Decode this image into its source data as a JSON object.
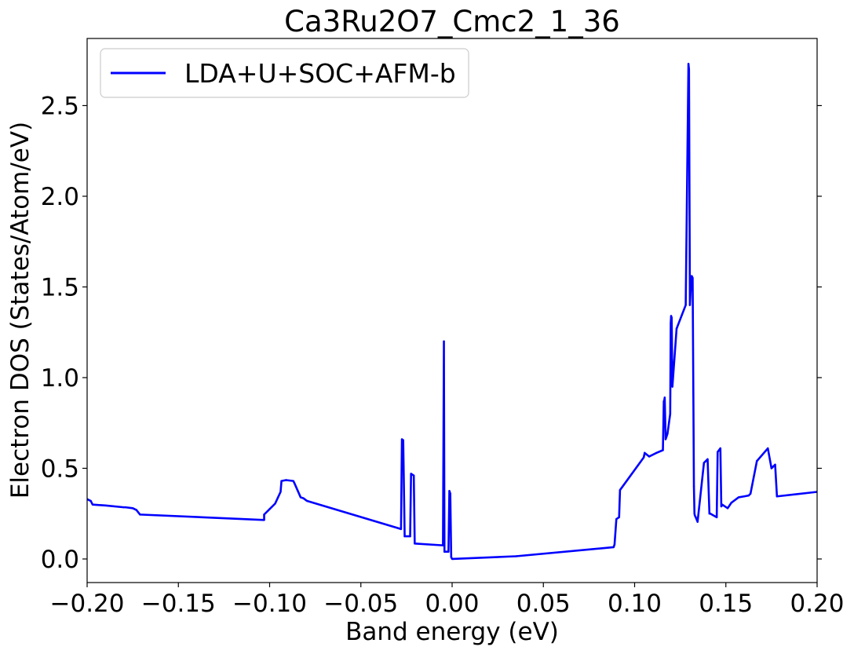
{
  "chart_data": {
    "type": "line",
    "title": "Ca3Ru2O7_Cmc2_1_36",
    "xlabel": "Band energy (eV)",
    "ylabel": "Electron DOS (States/Atom/eV)",
    "xlim": [
      -0.2,
      0.2
    ],
    "ylim": [
      -0.13,
      2.87
    ],
    "x_ticks": [
      -0.2,
      -0.15,
      -0.1,
      -0.05,
      0.0,
      0.05,
      0.1,
      0.15,
      0.2
    ],
    "x_tick_labels": [
      "−0.20",
      "−0.15",
      "−0.10",
      "−0.05",
      "0.00",
      "0.05",
      "0.10",
      "0.15",
      "0.20"
    ],
    "y_ticks": [
      0.0,
      0.5,
      1.0,
      1.5,
      2.0,
      2.5
    ],
    "y_tick_labels": [
      "0.0",
      "0.5",
      "1.0",
      "1.5",
      "2.0",
      "2.5"
    ],
    "grid": false,
    "legend_position": "upper-left",
    "series": [
      {
        "name": "LDA+U+SOC+AFM-b",
        "color": "#0000ff",
        "x": [
          -0.2,
          -0.198,
          -0.197,
          -0.19,
          -0.18,
          -0.179,
          -0.175,
          -0.173,
          -0.171,
          -0.103,
          -0.103,
          -0.1,
          -0.097,
          -0.094,
          -0.0935,
          -0.091,
          -0.087,
          -0.0865,
          -0.083,
          -0.0815,
          -0.0795,
          -0.028,
          -0.0275,
          -0.0268,
          -0.026,
          -0.023,
          -0.0225,
          -0.021,
          -0.0205,
          -0.005,
          -0.0045,
          -0.0042,
          -0.002,
          -0.0015,
          -0.001,
          -0.0005,
          0.0,
          0.035,
          0.0885,
          0.089,
          0.09,
          0.0915,
          0.092,
          0.105,
          0.1055,
          0.108,
          0.11,
          0.112,
          0.1155,
          0.116,
          0.116,
          0.1165,
          0.117,
          0.118,
          0.1195,
          0.1198,
          0.12,
          0.1203,
          0.1207,
          0.123,
          0.128,
          0.1295,
          0.1298,
          0.1303,
          0.1308,
          0.1313,
          0.1318,
          0.1325,
          0.1328,
          0.133,
          0.1335,
          0.1345,
          0.138,
          0.14,
          0.141,
          0.1415,
          0.145,
          0.1455,
          0.147,
          0.1475,
          0.148,
          0.151,
          0.153,
          0.157,
          0.16,
          0.1625,
          0.1635,
          0.167,
          0.173,
          0.175,
          0.177,
          0.178,
          0.2
        ],
        "y": [
          0.33,
          0.32,
          0.3,
          0.295,
          0.285,
          0.285,
          0.28,
          0.27,
          0.245,
          0.215,
          0.245,
          0.275,
          0.305,
          0.37,
          0.43,
          0.435,
          0.43,
          0.42,
          0.34,
          0.335,
          0.32,
          0.165,
          0.66,
          0.655,
          0.125,
          0.125,
          0.47,
          0.46,
          0.085,
          0.075,
          1.2,
          0.04,
          0.04,
          0.375,
          0.36,
          0.01,
          0.0,
          0.015,
          0.065,
          0.08,
          0.22,
          0.23,
          0.38,
          0.56,
          0.585,
          0.565,
          0.575,
          0.585,
          0.6,
          0.87,
          0.86,
          0.89,
          0.66,
          0.69,
          0.8,
          1.3,
          1.34,
          1.33,
          0.95,
          1.27,
          1.4,
          2.73,
          2.7,
          1.4,
          1.5,
          1.56,
          1.55,
          0.4,
          0.25,
          0.24,
          0.23,
          0.205,
          0.53,
          0.55,
          0.25,
          0.25,
          0.23,
          0.59,
          0.61,
          0.29,
          0.3,
          0.28,
          0.31,
          0.34,
          0.345,
          0.35,
          0.36,
          0.54,
          0.61,
          0.5,
          0.52,
          0.345,
          0.37
        ]
      }
    ]
  }
}
